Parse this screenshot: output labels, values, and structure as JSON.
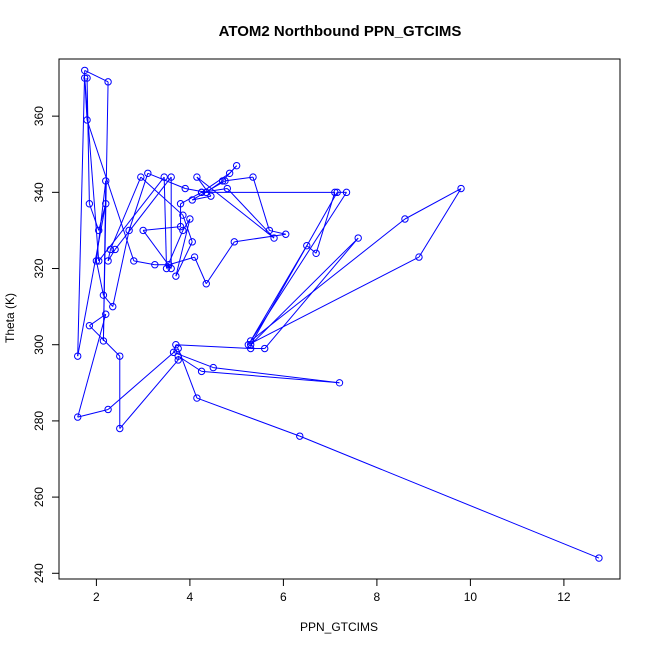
{
  "chart_data": {
    "type": "line",
    "title": "ATOM2 Northbound PPN_GTCIMS",
    "xlabel": "PPN_GTCIMS",
    "ylabel": "Theta (K)",
    "xlim": [
      1.2,
      13.2
    ],
    "ylim": [
      238.5,
      375
    ],
    "x_ticks": [
      2,
      4,
      6,
      8,
      10,
      12
    ],
    "y_ticks": [
      240,
      260,
      280,
      300,
      320,
      340,
      360
    ],
    "grid": false,
    "series": [
      {
        "color": "#0000ff",
        "marker": "open-circle",
        "x": [
          12.75,
          6.35,
          4.15,
          3.75,
          2.25,
          1.6,
          2.2,
          1.85,
          2.5,
          2.5,
          3.75,
          3.75,
          4.25,
          7.2,
          4.5,
          3.65,
          3.7,
          5.3,
          5.6,
          7.6,
          5.3,
          7.15,
          7.35,
          5.25,
          8.9,
          9.8,
          8.6,
          5.3,
          6.5,
          6.7,
          7.1,
          4.25,
          3.8,
          3.8,
          3.0,
          3.6,
          3.6,
          2.4,
          2.25,
          2.3,
          2.95,
          3.85,
          4.05,
          3.7,
          4.0,
          3.85,
          3.5,
          3.45,
          2.05,
          1.75,
          1.8,
          2.8,
          3.25,
          3.55,
          4.1,
          4.35,
          4.95,
          6.05,
          5.7,
          5.35,
          4.75,
          4.05,
          4.45,
          4.15,
          5.8,
          4.8,
          4.25,
          4.85,
          5.0,
          4.7,
          4.35,
          3.9,
          3.1,
          2.7,
          2.35,
          2.15,
          2.0,
          2.2,
          2.15,
          2.25,
          1.75,
          1.6,
          2.2,
          2.05,
          1.85,
          1.8
        ],
        "y": [
          244,
          276,
          286,
          299,
          283,
          281,
          308,
          305,
          297,
          278,
          296,
          297,
          293,
          290,
          294,
          298,
          300,
          299,
          299,
          328,
          300,
          340,
          340,
          300,
          323,
          341,
          333,
          301,
          326,
          324,
          340,
          340,
          337,
          331,
          330,
          320,
          344,
          325,
          322,
          325,
          344,
          334,
          327,
          318,
          333,
          330,
          320,
          344,
          322,
          370,
          359,
          322,
          321,
          321,
          323,
          316,
          327,
          329,
          330,
          344,
          343,
          338,
          339,
          344,
          328,
          341,
          340,
          345,
          347,
          343,
          340,
          341,
          345,
          330,
          310,
          313,
          322,
          343,
          301,
          369,
          372,
          297,
          337,
          330,
          337,
          370
        ]
      }
    ]
  }
}
